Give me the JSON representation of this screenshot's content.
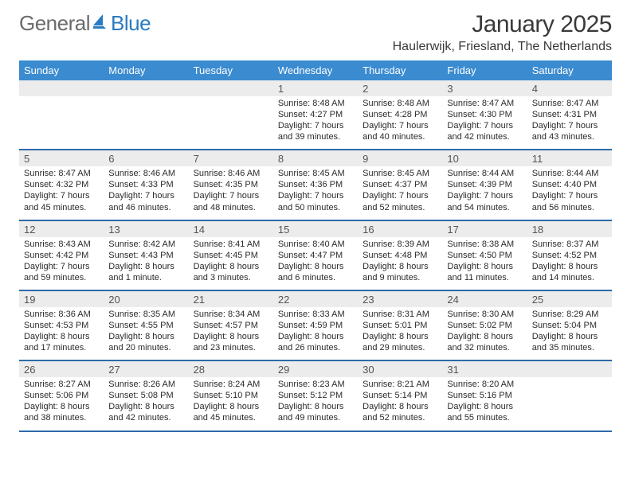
{
  "brand": {
    "part1": "General",
    "part2": "Blue"
  },
  "title": "January 2025",
  "location": "Haulerwijk, Friesland, The Netherlands",
  "colors": {
    "header_bar": "#3b8bd0",
    "week_divider": "#2f6aa8",
    "daynum_bg": "#ececec",
    "text": "#2b2b2b",
    "logo_gray": "#6b6b6b",
    "logo_blue": "#2a7bc0"
  },
  "day_names": [
    "Sunday",
    "Monday",
    "Tuesday",
    "Wednesday",
    "Thursday",
    "Friday",
    "Saturday"
  ],
  "weeks": [
    [
      null,
      null,
      null,
      {
        "num": "1",
        "sunrise": "8:48 AM",
        "sunset": "4:27 PM",
        "daylight": "7 hours and 39 minutes."
      },
      {
        "num": "2",
        "sunrise": "8:48 AM",
        "sunset": "4:28 PM",
        "daylight": "7 hours and 40 minutes."
      },
      {
        "num": "3",
        "sunrise": "8:47 AM",
        "sunset": "4:30 PM",
        "daylight": "7 hours and 42 minutes."
      },
      {
        "num": "4",
        "sunrise": "8:47 AM",
        "sunset": "4:31 PM",
        "daylight": "7 hours and 43 minutes."
      }
    ],
    [
      {
        "num": "5",
        "sunrise": "8:47 AM",
        "sunset": "4:32 PM",
        "daylight": "7 hours and 45 minutes."
      },
      {
        "num": "6",
        "sunrise": "8:46 AM",
        "sunset": "4:33 PM",
        "daylight": "7 hours and 46 minutes."
      },
      {
        "num": "7",
        "sunrise": "8:46 AM",
        "sunset": "4:35 PM",
        "daylight": "7 hours and 48 minutes."
      },
      {
        "num": "8",
        "sunrise": "8:45 AM",
        "sunset": "4:36 PM",
        "daylight": "7 hours and 50 minutes."
      },
      {
        "num": "9",
        "sunrise": "8:45 AM",
        "sunset": "4:37 PM",
        "daylight": "7 hours and 52 minutes."
      },
      {
        "num": "10",
        "sunrise": "8:44 AM",
        "sunset": "4:39 PM",
        "daylight": "7 hours and 54 minutes."
      },
      {
        "num": "11",
        "sunrise": "8:44 AM",
        "sunset": "4:40 PM",
        "daylight": "7 hours and 56 minutes."
      }
    ],
    [
      {
        "num": "12",
        "sunrise": "8:43 AM",
        "sunset": "4:42 PM",
        "daylight": "7 hours and 59 minutes."
      },
      {
        "num": "13",
        "sunrise": "8:42 AM",
        "sunset": "4:43 PM",
        "daylight": "8 hours and 1 minute."
      },
      {
        "num": "14",
        "sunrise": "8:41 AM",
        "sunset": "4:45 PM",
        "daylight": "8 hours and 3 minutes."
      },
      {
        "num": "15",
        "sunrise": "8:40 AM",
        "sunset": "4:47 PM",
        "daylight": "8 hours and 6 minutes."
      },
      {
        "num": "16",
        "sunrise": "8:39 AM",
        "sunset": "4:48 PM",
        "daylight": "8 hours and 9 minutes."
      },
      {
        "num": "17",
        "sunrise": "8:38 AM",
        "sunset": "4:50 PM",
        "daylight": "8 hours and 11 minutes."
      },
      {
        "num": "18",
        "sunrise": "8:37 AM",
        "sunset": "4:52 PM",
        "daylight": "8 hours and 14 minutes."
      }
    ],
    [
      {
        "num": "19",
        "sunrise": "8:36 AM",
        "sunset": "4:53 PM",
        "daylight": "8 hours and 17 minutes."
      },
      {
        "num": "20",
        "sunrise": "8:35 AM",
        "sunset": "4:55 PM",
        "daylight": "8 hours and 20 minutes."
      },
      {
        "num": "21",
        "sunrise": "8:34 AM",
        "sunset": "4:57 PM",
        "daylight": "8 hours and 23 minutes."
      },
      {
        "num": "22",
        "sunrise": "8:33 AM",
        "sunset": "4:59 PM",
        "daylight": "8 hours and 26 minutes."
      },
      {
        "num": "23",
        "sunrise": "8:31 AM",
        "sunset": "5:01 PM",
        "daylight": "8 hours and 29 minutes."
      },
      {
        "num": "24",
        "sunrise": "8:30 AM",
        "sunset": "5:02 PM",
        "daylight": "8 hours and 32 minutes."
      },
      {
        "num": "25",
        "sunrise": "8:29 AM",
        "sunset": "5:04 PM",
        "daylight": "8 hours and 35 minutes."
      }
    ],
    [
      {
        "num": "26",
        "sunrise": "8:27 AM",
        "sunset": "5:06 PM",
        "daylight": "8 hours and 38 minutes."
      },
      {
        "num": "27",
        "sunrise": "8:26 AM",
        "sunset": "5:08 PM",
        "daylight": "8 hours and 42 minutes."
      },
      {
        "num": "28",
        "sunrise": "8:24 AM",
        "sunset": "5:10 PM",
        "daylight": "8 hours and 45 minutes."
      },
      {
        "num": "29",
        "sunrise": "8:23 AM",
        "sunset": "5:12 PM",
        "daylight": "8 hours and 49 minutes."
      },
      {
        "num": "30",
        "sunrise": "8:21 AM",
        "sunset": "5:14 PM",
        "daylight": "8 hours and 52 minutes."
      },
      {
        "num": "31",
        "sunrise": "8:20 AM",
        "sunset": "5:16 PM",
        "daylight": "8 hours and 55 minutes."
      },
      null
    ]
  ],
  "labels": {
    "sunrise": "Sunrise:",
    "sunset": "Sunset:",
    "daylight": "Daylight:"
  }
}
